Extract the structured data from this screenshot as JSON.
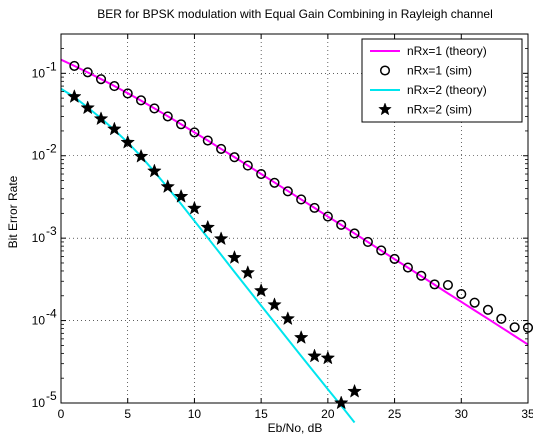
{
  "chart_data": {
    "type": "line",
    "title": "BER for BPSK modulation with Equal Gain Combining in Rayleigh channel",
    "xlabel": "Eb/No, dB",
    "ylabel": "Bit Error Rate",
    "xlim": [
      0,
      35
    ],
    "ylim": [
      1e-05,
      0.3
    ],
    "yscale": "log",
    "grid": true,
    "legend_position": "top-right",
    "x_ticks": [
      "0",
      "5",
      "10",
      "15",
      "20",
      "25",
      "30",
      "35"
    ],
    "y_ticks": [
      {
        "base": "10",
        "exp": "-1",
        "value": 0.1
      },
      {
        "base": "10",
        "exp": "-2",
        "value": 0.01
      },
      {
        "base": "10",
        "exp": "-3",
        "value": 0.001
      },
      {
        "base": "10",
        "exp": "-4",
        "value": 0.0001
      },
      {
        "base": "10",
        "exp": "-5",
        "value": 1e-05
      }
    ],
    "series": [
      {
        "name": "nRx=1 (theory)",
        "style": "line",
        "color": "#ff00ff",
        "x": [
          0,
          1,
          2,
          3,
          4,
          5,
          6,
          7,
          8,
          9,
          10,
          11,
          12,
          13,
          14,
          15,
          16,
          17,
          18,
          19,
          20,
          21,
          22,
          23,
          24,
          25,
          26,
          27,
          28,
          29,
          30,
          31,
          32,
          33,
          34,
          35
        ],
        "y": [
          0.1464,
          0.1231,
          0.1028,
          0.0852,
          0.0702,
          0.0574,
          0.0466,
          0.0376,
          0.0302,
          0.0241,
          0.0192,
          0.0153,
          0.0121,
          0.00962,
          0.0076,
          0.00601,
          0.00474,
          0.00374,
          0.00295,
          0.00233,
          0.00183,
          0.00145,
          0.00114,
          0.000898,
          0.000707,
          0.000557,
          0.000439,
          0.000346,
          0.000272,
          0.000214,
          0.000169,
          0.000133,
          0.000105,
          8.26e-05,
          6.5e-05,
          5.12e-05
        ]
      },
      {
        "name": "nRx=1 (sim)",
        "style": "circle",
        "color": "#000000",
        "x": [
          1,
          2,
          3,
          4,
          5,
          6,
          7,
          8,
          9,
          10,
          11,
          12,
          13,
          14,
          15,
          16,
          17,
          18,
          19,
          20,
          21,
          22,
          23,
          24,
          25,
          26,
          27,
          28,
          29,
          30,
          31,
          32,
          33,
          34,
          35
        ],
        "y": [
          0.123,
          0.103,
          0.085,
          0.07,
          0.057,
          0.047,
          0.0375,
          0.03,
          0.0241,
          0.0192,
          0.0153,
          0.0121,
          0.0096,
          0.0076,
          0.006,
          0.0047,
          0.0037,
          0.00295,
          0.00233,
          0.00183,
          0.00145,
          0.00114,
          0.0009,
          0.00071,
          0.00056,
          0.00044,
          0.00035,
          0.000275,
          0.00027,
          0.00021,
          0.000165,
          0.000135,
          0.000105,
          8.3e-05,
          8.2e-05
        ]
      },
      {
        "name": "nRx=2 (theory)",
        "style": "line",
        "color": "#00e5ee",
        "x": [
          0,
          1,
          2,
          3,
          4,
          5,
          6,
          7,
          8,
          9,
          10,
          11,
          12,
          13,
          14,
          15,
          16,
          17,
          18,
          19,
          20,
          21,
          22
        ],
        "y": [
          0.065,
          0.0515,
          0.0385,
          0.0285,
          0.0205,
          0.0145,
          0.0098,
          0.0064,
          0.0041,
          0.0026,
          0.00162,
          0.00101,
          0.00063,
          0.00039,
          0.000243,
          0.000152,
          9.5e-05,
          5.94e-05,
          3.72e-05,
          2.34e-05,
          1.47e-05,
          9.3e-06,
          5.8e-06
        ]
      },
      {
        "name": "nRx=2 (sim)",
        "style": "star",
        "color": "#000000",
        "x": [
          1,
          2,
          3,
          4,
          5,
          6,
          7,
          8,
          9,
          10,
          11,
          12,
          13,
          14,
          15,
          16,
          17,
          18,
          19,
          20,
          21,
          22
        ],
        "y": [
          0.052,
          0.038,
          0.028,
          0.021,
          0.0145,
          0.0098,
          0.0065,
          0.0042,
          0.0032,
          0.0023,
          0.00135,
          0.00098,
          0.00058,
          0.00038,
          0.00023,
          0.000155,
          0.000105,
          6.2e-05,
          3.7e-05,
          3.5e-05,
          1e-05,
          1.38e-05
        ]
      }
    ]
  }
}
